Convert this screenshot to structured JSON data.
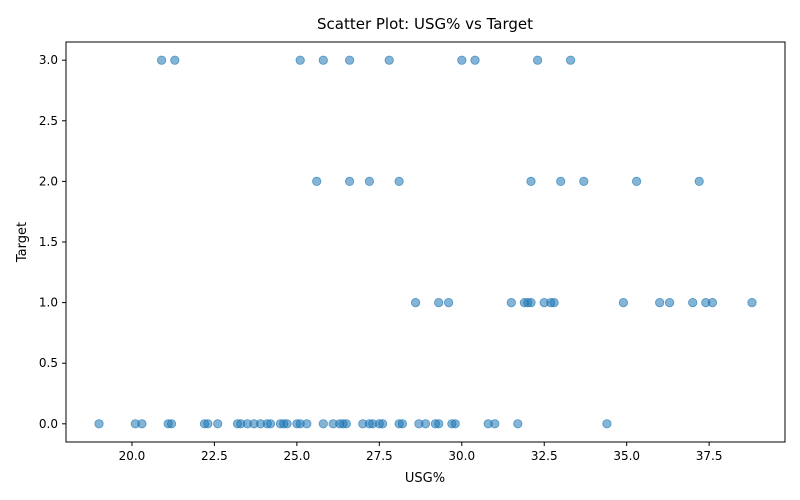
{
  "chart_data": {
    "type": "scatter",
    "title": "Scatter Plot: USG% vs Target",
    "xlabel": "USG%",
    "ylabel": "Target",
    "xlim": [
      18.0,
      39.8
    ],
    "ylim": [
      -0.15,
      3.15
    ],
    "x_ticks": [
      "20.0",
      "22.5",
      "25.0",
      "27.5",
      "30.0",
      "32.5",
      "35.0",
      "37.5"
    ],
    "x_tick_values": [
      20.0,
      22.5,
      25.0,
      27.5,
      30.0,
      32.5,
      35.0,
      37.5
    ],
    "y_ticks": [
      "0.0",
      "0.5",
      "1.0",
      "1.5",
      "2.0",
      "2.5",
      "3.0"
    ],
    "y_tick_values": [
      0.0,
      0.5,
      1.0,
      1.5,
      2.0,
      2.5,
      3.0
    ],
    "grid": false,
    "marker_color": "#1f77b4",
    "points": [
      {
        "x": 19.0,
        "y": 0
      },
      {
        "x": 20.1,
        "y": 0
      },
      {
        "x": 20.3,
        "y": 0
      },
      {
        "x": 21.1,
        "y": 0
      },
      {
        "x": 21.2,
        "y": 0
      },
      {
        "x": 22.2,
        "y": 0
      },
      {
        "x": 22.3,
        "y": 0
      },
      {
        "x": 22.6,
        "y": 0
      },
      {
        "x": 23.2,
        "y": 0
      },
      {
        "x": 23.3,
        "y": 0
      },
      {
        "x": 23.5,
        "y": 0
      },
      {
        "x": 23.7,
        "y": 0
      },
      {
        "x": 23.9,
        "y": 0
      },
      {
        "x": 24.1,
        "y": 0
      },
      {
        "x": 24.2,
        "y": 0
      },
      {
        "x": 24.5,
        "y": 0
      },
      {
        "x": 24.6,
        "y": 0
      },
      {
        "x": 24.7,
        "y": 0
      },
      {
        "x": 25.0,
        "y": 0
      },
      {
        "x": 25.1,
        "y": 0
      },
      {
        "x": 25.3,
        "y": 0
      },
      {
        "x": 25.8,
        "y": 0
      },
      {
        "x": 26.1,
        "y": 0
      },
      {
        "x": 26.3,
        "y": 0
      },
      {
        "x": 26.4,
        "y": 0
      },
      {
        "x": 26.5,
        "y": 0
      },
      {
        "x": 27.0,
        "y": 0
      },
      {
        "x": 27.2,
        "y": 0
      },
      {
        "x": 27.3,
        "y": 0
      },
      {
        "x": 27.5,
        "y": 0
      },
      {
        "x": 27.6,
        "y": 0
      },
      {
        "x": 28.1,
        "y": 0
      },
      {
        "x": 28.2,
        "y": 0
      },
      {
        "x": 28.7,
        "y": 0
      },
      {
        "x": 28.9,
        "y": 0
      },
      {
        "x": 29.2,
        "y": 0
      },
      {
        "x": 29.3,
        "y": 0
      },
      {
        "x": 29.7,
        "y": 0
      },
      {
        "x": 29.8,
        "y": 0
      },
      {
        "x": 30.8,
        "y": 0
      },
      {
        "x": 31.0,
        "y": 0
      },
      {
        "x": 31.7,
        "y": 0
      },
      {
        "x": 34.4,
        "y": 0
      },
      {
        "x": 28.6,
        "y": 1
      },
      {
        "x": 29.3,
        "y": 1
      },
      {
        "x": 29.6,
        "y": 1
      },
      {
        "x": 31.5,
        "y": 1
      },
      {
        "x": 31.9,
        "y": 1
      },
      {
        "x": 32.1,
        "y": 1
      },
      {
        "x": 32.0,
        "y": 1
      },
      {
        "x": 32.5,
        "y": 1
      },
      {
        "x": 32.7,
        "y": 1
      },
      {
        "x": 32.8,
        "y": 1
      },
      {
        "x": 34.9,
        "y": 1
      },
      {
        "x": 36.0,
        "y": 1
      },
      {
        "x": 36.3,
        "y": 1
      },
      {
        "x": 37.0,
        "y": 1
      },
      {
        "x": 37.4,
        "y": 1
      },
      {
        "x": 37.6,
        "y": 1
      },
      {
        "x": 38.8,
        "y": 1
      },
      {
        "x": 25.6,
        "y": 2
      },
      {
        "x": 26.6,
        "y": 2
      },
      {
        "x": 27.2,
        "y": 2
      },
      {
        "x": 28.1,
        "y": 2
      },
      {
        "x": 32.1,
        "y": 2
      },
      {
        "x": 33.0,
        "y": 2
      },
      {
        "x": 33.7,
        "y": 2
      },
      {
        "x": 35.3,
        "y": 2
      },
      {
        "x": 37.2,
        "y": 2
      },
      {
        "x": 20.9,
        "y": 3
      },
      {
        "x": 21.3,
        "y": 3
      },
      {
        "x": 25.1,
        "y": 3
      },
      {
        "x": 25.8,
        "y": 3
      },
      {
        "x": 26.6,
        "y": 3
      },
      {
        "x": 27.8,
        "y": 3
      },
      {
        "x": 30.0,
        "y": 3
      },
      {
        "x": 30.4,
        "y": 3
      },
      {
        "x": 32.3,
        "y": 3
      },
      {
        "x": 33.3,
        "y": 3
      }
    ]
  }
}
